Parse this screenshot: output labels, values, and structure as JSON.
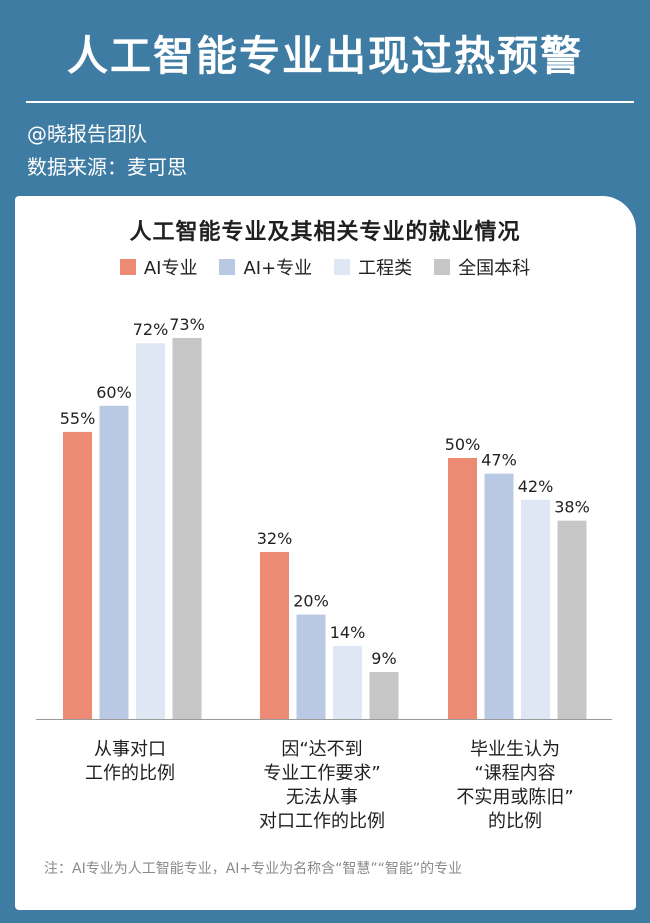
{
  "header": {
    "title": "人工智能专业出现过热预警",
    "author": "@晓报告团队",
    "source": "数据来源：麦可思"
  },
  "colors": {
    "background": "#3f7ca3",
    "card": "#ffffff",
    "series": [
      "#ec8a73",
      "#b9c8e3",
      "#dfe6f4",
      "#c6c6c6"
    ]
  },
  "chart_data": {
    "type": "bar",
    "title": "人工智能专业及其相关专业的就业情况",
    "legend_position": "top-center",
    "grid": false,
    "ylim": [
      0,
      100
    ],
    "categories": [
      [
        "从事对口",
        "工作的比例"
      ],
      [
        "因“达不到",
        "专业工作要求”",
        "无法从事",
        "对口工作的比例"
      ],
      [
        "毕业生认为",
        "“课程内容",
        "不实用或陈旧”",
        "的比例"
      ]
    ],
    "series": [
      {
        "name": "AI专业",
        "values": [
          55,
          32,
          50
        ],
        "labels": [
          "55%",
          "32%",
          "50%"
        ]
      },
      {
        "name": "AI+专业",
        "values": [
          60,
          20,
          47
        ],
        "labels": [
          "60%",
          "20%",
          "47%"
        ]
      },
      {
        "name": "工程类",
        "values": [
          72,
          14,
          42
        ],
        "labels": [
          "72%",
          "14%",
          "42%"
        ]
      },
      {
        "name": "全国本科",
        "values": [
          73,
          9,
          38
        ],
        "labels": [
          "73%",
          "9%",
          "38%"
        ]
      }
    ]
  },
  "footnote": "注：AI专业为人工智能专业，AI+专业为名称含“智慧”“智能”的专业"
}
